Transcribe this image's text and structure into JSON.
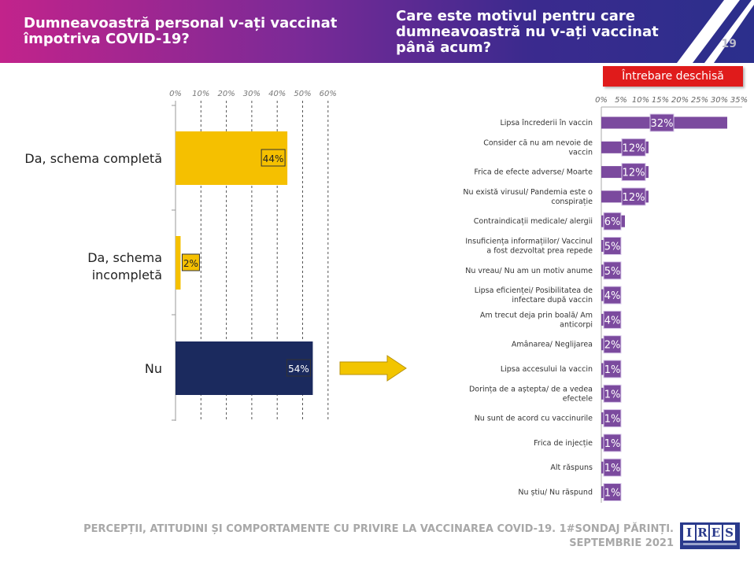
{
  "header": {
    "left_title": "Dumneavoastră personal v-ați vaccinat împotriva COVID-19?",
    "right_title": "Care este motivul pentru care dumneavoastră nu v-ați vaccinat până acum?",
    "page_number": "19"
  },
  "badge": {
    "open_question": "Întrebare deschisă"
  },
  "footer": {
    "line1": "PERCEPȚII, ATITUDINI ȘI COMPORTAMENTE CU PRIVIRE LA VACCINAREA COVID-19. 1#SONDAJ PĂRINȚI.",
    "line2": "SEPTEMBRIE 2021",
    "logo": "IRES"
  },
  "colors": {
    "yellow_bar": "#f5c000",
    "navy_bar": "#1b2a5e",
    "purple_bar": "#7b4a9e",
    "arrow": "#f2c500",
    "open_question_badge": "#e01b1b"
  },
  "chart_data": [
    {
      "type": "bar",
      "orientation": "horizontal",
      "categories": [
        "Da, schema completă",
        "Da, schema incompletă",
        "Nu"
      ],
      "values": [
        44,
        2,
        54
      ],
      "value_labels": [
        "44%",
        "2%",
        "54%"
      ],
      "xlim": [
        0,
        60
      ],
      "xticks": [
        "0%",
        "10%",
        "20%",
        "30%",
        "40%",
        "50%",
        "60%"
      ],
      "grid": true
    },
    {
      "type": "bar",
      "orientation": "horizontal",
      "categories": [
        "Lipsa încrederii în vaccin",
        "Consider că nu am nevoie de vaccin",
        "Frica de efecte adverse/ Moarte",
        "Nu există virusul/ Pandemia este o conspirație",
        "Contraindicații medicale/ alergii",
        "Insuficiența informațiilor/ Vaccinul a fost dezvoltat prea repede",
        "Nu vreau/ Nu am un motiv anume",
        "Lipsa eficienței/ Posibilitatea de infectare după vaccin",
        "Am trecut deja prin boală/ Am anticorpi",
        "Amânarea/ Neglijarea",
        "Lipsa accesului la vaccin",
        "Dorința de a aștepta/ de a vedea efectele",
        "Nu sunt de acord cu vaccinurile",
        "Frica de injecție",
        "Alt răspuns",
        "Nu știu/ Nu răspund"
      ],
      "values": [
        32,
        12,
        12,
        12,
        6,
        5,
        5,
        4,
        4,
        2,
        1,
        1,
        1,
        1,
        1,
        1
      ],
      "value_labels": [
        "32%",
        "12%",
        "12%",
        "12%",
        "6%",
        "5%",
        "5%",
        "4%",
        "4%",
        "2%",
        "1%",
        "1%",
        "1%",
        "1%",
        "1%",
        "1%"
      ],
      "xlim": [
        0,
        35
      ],
      "xticks": [
        "0%",
        "5%",
        "10%",
        "15%",
        "20%",
        "25%",
        "30%",
        "35%"
      ],
      "grid": false
    }
  ]
}
